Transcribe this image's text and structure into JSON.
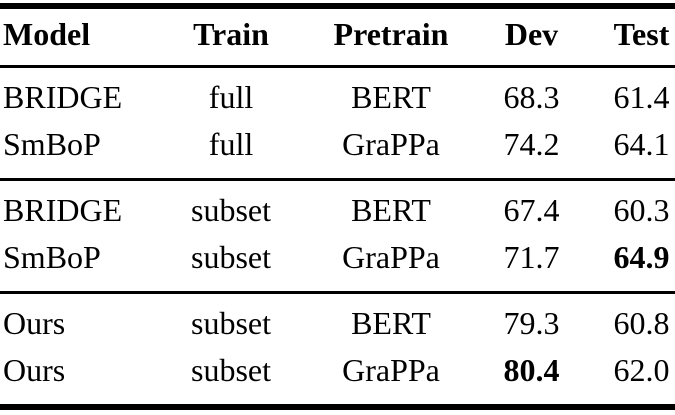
{
  "colors": {
    "background": "#ffffff",
    "text": "#000000",
    "rule": "#000000"
  },
  "table": {
    "columns": [
      "Model",
      "Train",
      "Pretrain",
      "Dev",
      "Test"
    ],
    "groups": [
      {
        "rows": [
          {
            "model": "BRIDGE",
            "train": "full",
            "pretrain": "BERT",
            "dev": "68.3",
            "test": "61.4"
          },
          {
            "model": "SmBoP",
            "train": "full",
            "pretrain": "GraPPa",
            "dev": "74.2",
            "test": "64.1"
          }
        ]
      },
      {
        "rows": [
          {
            "model": "BRIDGE",
            "train": "subset",
            "pretrain": "BERT",
            "dev": "67.4",
            "test": "60.3"
          },
          {
            "model": "SmBoP",
            "train": "subset",
            "pretrain": "GraPPa",
            "dev": "71.7",
            "test": "64.9",
            "test_bold": true
          }
        ]
      },
      {
        "rows": [
          {
            "model": "Ours",
            "train": "subset",
            "pretrain": "BERT",
            "dev": "79.3",
            "test": "60.8"
          },
          {
            "model": "Ours",
            "train": "subset",
            "pretrain": "GraPPa",
            "dev": "80.4",
            "dev_bold": true,
            "test": "62.0"
          }
        ]
      }
    ]
  },
  "chart_data": {
    "type": "table",
    "columns": [
      "Model",
      "Train",
      "Pretrain",
      "Dev",
      "Test"
    ],
    "rows": [
      [
        "BRIDGE",
        "full",
        "BERT",
        68.3,
        61.4
      ],
      [
        "SmBoP",
        "full",
        "GraPPa",
        74.2,
        64.1
      ],
      [
        "BRIDGE",
        "subset",
        "BERT",
        67.4,
        60.3
      ],
      [
        "SmBoP",
        "subset",
        "GraPPa",
        71.7,
        64.9
      ],
      [
        "Ours",
        "subset",
        "BERT",
        79.3,
        60.8
      ],
      [
        "Ours",
        "subset",
        "GraPPa",
        80.4,
        62.0
      ]
    ],
    "bold_cells": [
      {
        "row": 3,
        "column": "Test",
        "value": 64.9
      },
      {
        "row": 5,
        "column": "Dev",
        "value": 80.4
      }
    ],
    "group_separators_after_rows": [
      1,
      3
    ],
    "title": "",
    "notes": "booktabs-style results table: thick top/bottom rules, thin mid rules"
  }
}
